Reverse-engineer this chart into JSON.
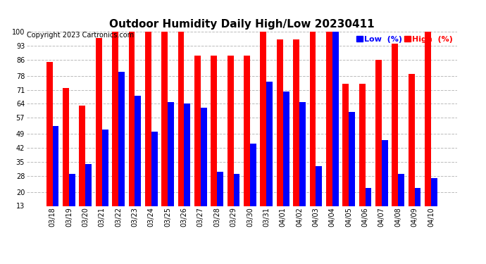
{
  "title": "Outdoor Humidity Daily High/Low 20230411",
  "copyright": "Copyright 2023 Cartronics.com",
  "legend_low_label": "Low  (%)",
  "legend_high_label": "High  (%)",
  "dates": [
    "03/18",
    "03/19",
    "03/20",
    "03/21",
    "03/22",
    "03/23",
    "03/24",
    "03/25",
    "03/26",
    "03/27",
    "03/28",
    "03/29",
    "03/30",
    "03/31",
    "04/01",
    "04/02",
    "04/03",
    "04/04",
    "04/05",
    "04/06",
    "04/07",
    "04/08",
    "04/09",
    "04/10"
  ],
  "high": [
    85,
    72,
    63,
    97,
    100,
    100,
    100,
    100,
    100,
    88,
    88,
    88,
    88,
    100,
    96,
    96,
    100,
    100,
    74,
    74,
    86,
    94,
    79,
    100
  ],
  "low": [
    53,
    29,
    34,
    51,
    80,
    68,
    50,
    65,
    64,
    62,
    30,
    29,
    44,
    75,
    70,
    65,
    33,
    100,
    60,
    22,
    46,
    29,
    22,
    27
  ],
  "ylim_min": 13,
  "ylim_max": 100,
  "yticks": [
    13,
    20,
    28,
    35,
    42,
    49,
    57,
    64,
    71,
    78,
    86,
    93,
    100
  ],
  "bar_width": 0.38,
  "high_color": "#ff0000",
  "low_color": "#0000ff",
  "bg_color": "#ffffff",
  "grid_color": "#bbbbbb",
  "title_fontsize": 11,
  "tick_fontsize": 7,
  "copyright_fontsize": 7,
  "legend_fontsize": 8
}
